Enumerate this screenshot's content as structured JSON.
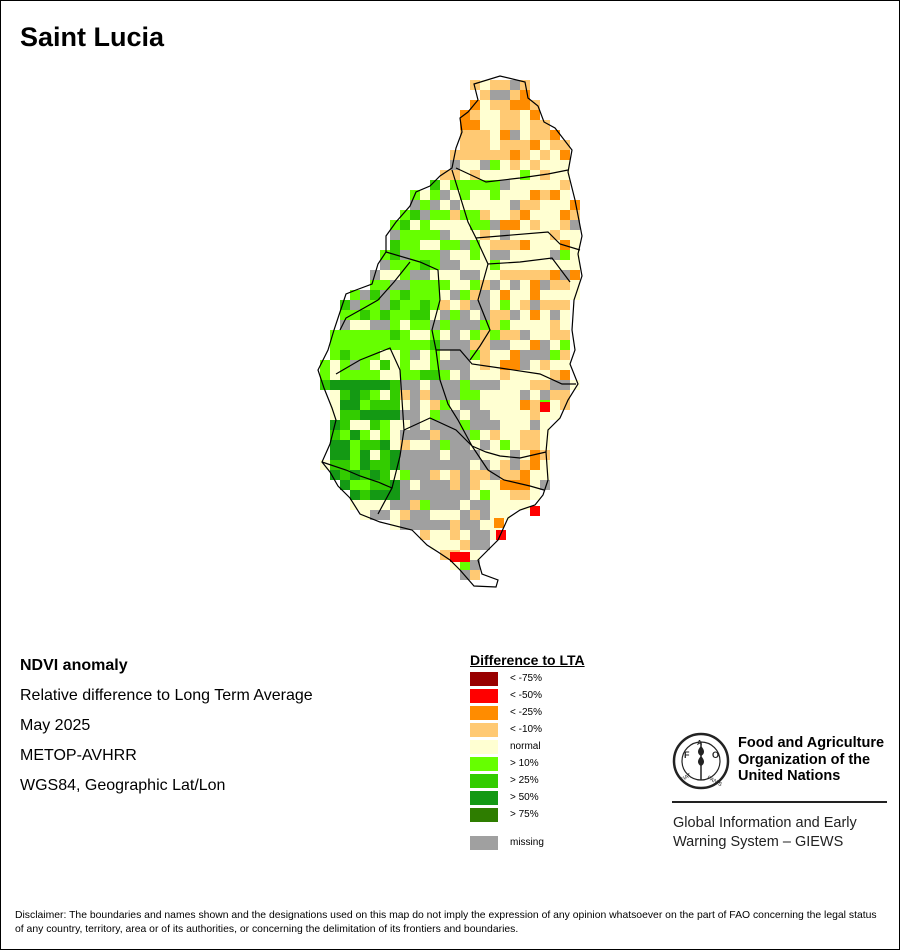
{
  "map": {
    "title": "Saint Lucia",
    "pixel_size_deg": "~1 km grid cell",
    "cells": [
      [
        "   ",
        "   ",
        "   ",
        "   ",
        "   ",
        "   ",
        "   ",
        "   ",
        "   ",
        "   ",
        "   ",
        "   ",
        "   ",
        "   ",
        "   ",
        "   ",
        "   ",
        "   ",
        "   ",
        "   ",
        "   ",
        "   ",
        "   ",
        "   ",
        "   ",
        "   ",
        "   "
      ],
      [
        "   ",
        "   ",
        "   ",
        "   ",
        "   ",
        "   ",
        "   ",
        "   ",
        "   ",
        "   ",
        "   ",
        "   ",
        "   ",
        "   ",
        "   ",
        "   ",
        "   ",
        "   ",
        "   ",
        "   ",
        "   ",
        "   ",
        "   ",
        "   ",
        "   ",
        "   ",
        "   "
      ]
    ],
    "classes": {
      "n": "normal",
      "l": "< -10%",
      "o": "< -25%",
      "r": "< -50%",
      "d": "< -75%",
      "g1": "> 10%",
      "g2": "> 25%",
      "g3": "> 50%",
      "g4": "> 75%",
      "m": "missing"
    }
  },
  "info": {
    "line1": "NDVI anomaly",
    "line2": "Relative difference to Long Term Average",
    "line3": "May 2025",
    "line4": "METOP-AVHRR",
    "line5": "WGS84, Geographic Lat/Lon"
  },
  "legend": {
    "title": "Difference to LTA",
    "items": [
      {
        "label": "< -75%",
        "color": "#990000"
      },
      {
        "label": "< -50%",
        "color": "#ff0000"
      },
      {
        "label": "< -25%",
        "color": "#ff8c00"
      },
      {
        "label": "< -10%",
        "color": "#ffc973"
      },
      {
        "label": "normal",
        "color": "#ffffd2"
      },
      {
        "label": "> 10%",
        "color": "#66ff00"
      },
      {
        "label": "> 25%",
        "color": "#33cc00"
      },
      {
        "label": "> 50%",
        "color": "#149914"
      },
      {
        "label": "> 75%",
        "color": "#2e7d00"
      },
      {
        "label": "missing",
        "color": "#a0a0a0"
      }
    ]
  },
  "organization": {
    "name_line1": "Food and Agriculture",
    "name_line2": "Organization of the",
    "name_line3": "United Nations",
    "emblem_letters": "FAO",
    "emblem_motto": "FIAT PANIS",
    "system_line1": "Global Information and Early",
    "system_line2": "Warning System – GIEWS"
  },
  "disclaimer": "Disclaimer: The boundaries and names shown and the designations used on this map do not imply the expression of any opinion whatsoever on the part of FAO concerning the legal status of any country, territory, area or of its authorities, or concerning the delimitation of its frontiers and boundaries."
}
